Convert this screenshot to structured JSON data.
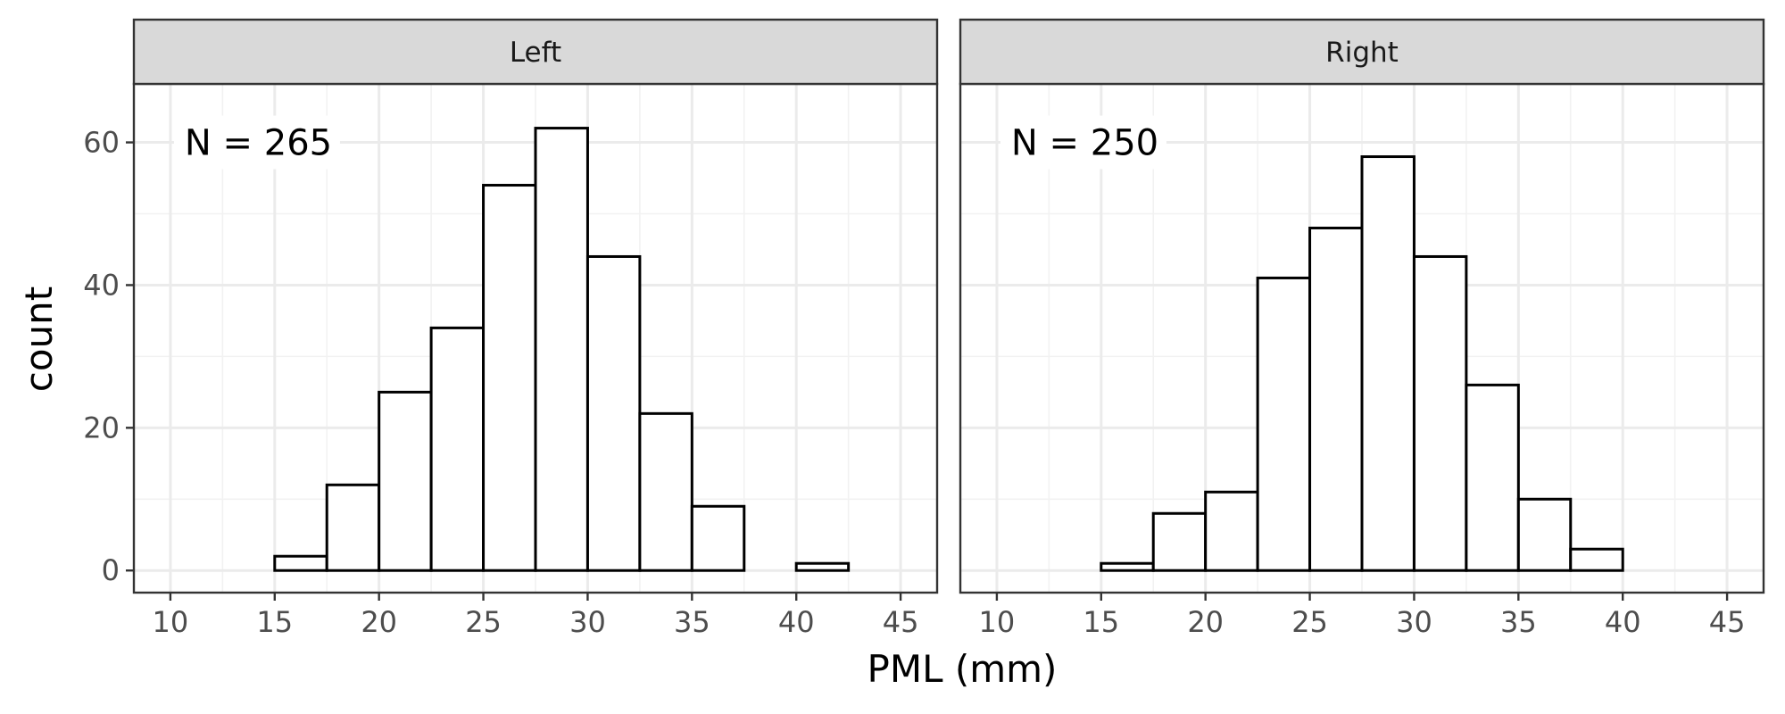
{
  "chart_data": {
    "type": "bar",
    "xlabel": "PML (mm)",
    "ylabel": "count",
    "xlim": [
      8.25,
      46.75
    ],
    "ylim": [
      -3.1,
      68.2
    ],
    "x_breaks": [
      10,
      15,
      20,
      25,
      30,
      35,
      40,
      45
    ],
    "y_breaks": [
      0,
      20,
      40,
      60
    ],
    "bin_width": 2.5,
    "bin_starts": [
      10,
      12.5,
      15,
      17.5,
      20,
      22.5,
      25,
      27.5,
      30,
      32.5,
      35,
      37.5,
      40,
      42.5
    ],
    "grid": true,
    "legend": "none",
    "panels": [
      {
        "strip": "Left",
        "annotation": "N = 265",
        "counts": [
          0,
          0,
          2,
          12,
          25,
          34,
          54,
          62,
          44,
          22,
          9,
          0,
          1,
          0
        ]
      },
      {
        "strip": "Right",
        "annotation": "N = 250",
        "counts": [
          0,
          0,
          1,
          8,
          11,
          41,
          48,
          58,
          44,
          26,
          10,
          3,
          0,
          0
        ]
      }
    ]
  },
  "colors": {
    "bar_fill": "#ffffff",
    "bar_outline": "#000000",
    "strip_fill": "#d9d9d9",
    "panel_border": "#333333",
    "grid_major": "#ebebeb",
    "grid_minor": "#f2f2f2",
    "tick_text": "#4d4d4d"
  }
}
